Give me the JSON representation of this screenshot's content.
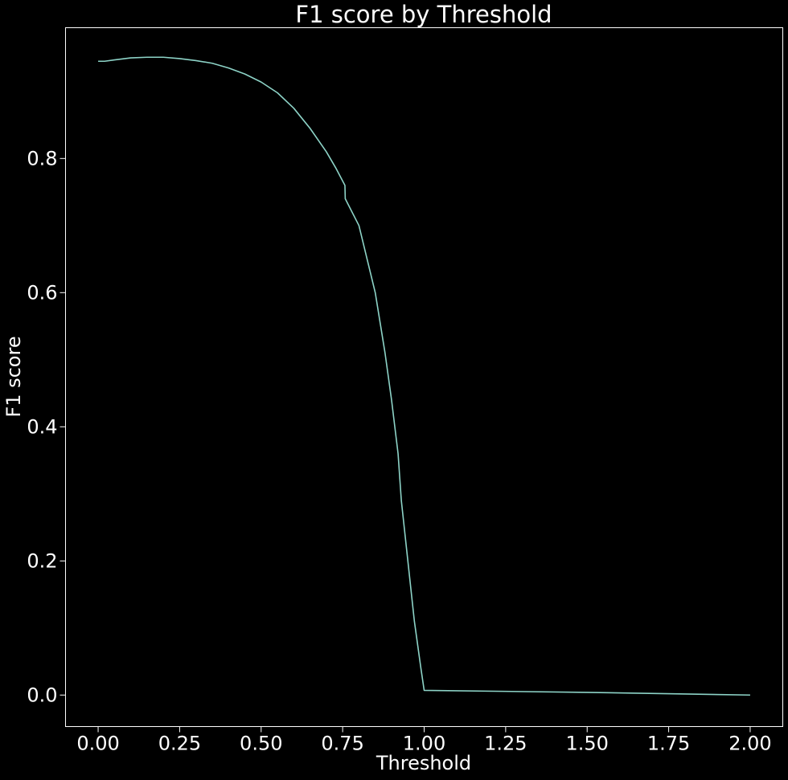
{
  "chart_data": {
    "type": "line",
    "title": "F1 score by Threshold",
    "xlabel": "Threshold",
    "ylabel": "F1 score",
    "xlim": [
      -0.1,
      2.1
    ],
    "ylim": [
      -0.047,
      0.995
    ],
    "grid": false,
    "x_ticks": [
      0.0,
      0.25,
      0.5,
      0.75,
      1.0,
      1.25,
      1.5,
      1.75,
      2.0
    ],
    "x_tick_labels": [
      "0.00",
      "0.25",
      "0.50",
      "0.75",
      "1.00",
      "1.25",
      "1.50",
      "1.75",
      "2.00"
    ],
    "y_ticks": [
      0.0,
      0.2,
      0.4,
      0.6,
      0.8
    ],
    "y_tick_labels": [
      "0.0",
      "0.2",
      "0.4",
      "0.6",
      "0.8"
    ],
    "series": [
      {
        "color": "#8dd3c7",
        "x": [
          0.0,
          0.02,
          0.05,
          0.1,
          0.15,
          0.2,
          0.25,
          0.3,
          0.35,
          0.4,
          0.45,
          0.5,
          0.55,
          0.6,
          0.65,
          0.7,
          0.73,
          0.757,
          0.758,
          0.8,
          0.85,
          0.88,
          0.9,
          0.92,
          0.93,
          0.95,
          0.97,
          0.99,
          1.0,
          1.5,
          2.0
        ],
        "y": [
          0.945,
          0.945,
          0.947,
          0.95,
          0.951,
          0.951,
          0.949,
          0.946,
          0.942,
          0.935,
          0.926,
          0.914,
          0.898,
          0.875,
          0.845,
          0.81,
          0.785,
          0.76,
          0.74,
          0.7,
          0.6,
          0.51,
          0.44,
          0.36,
          0.29,
          0.2,
          0.11,
          0.04,
          0.007,
          0.004,
          0.0
        ]
      }
    ]
  }
}
